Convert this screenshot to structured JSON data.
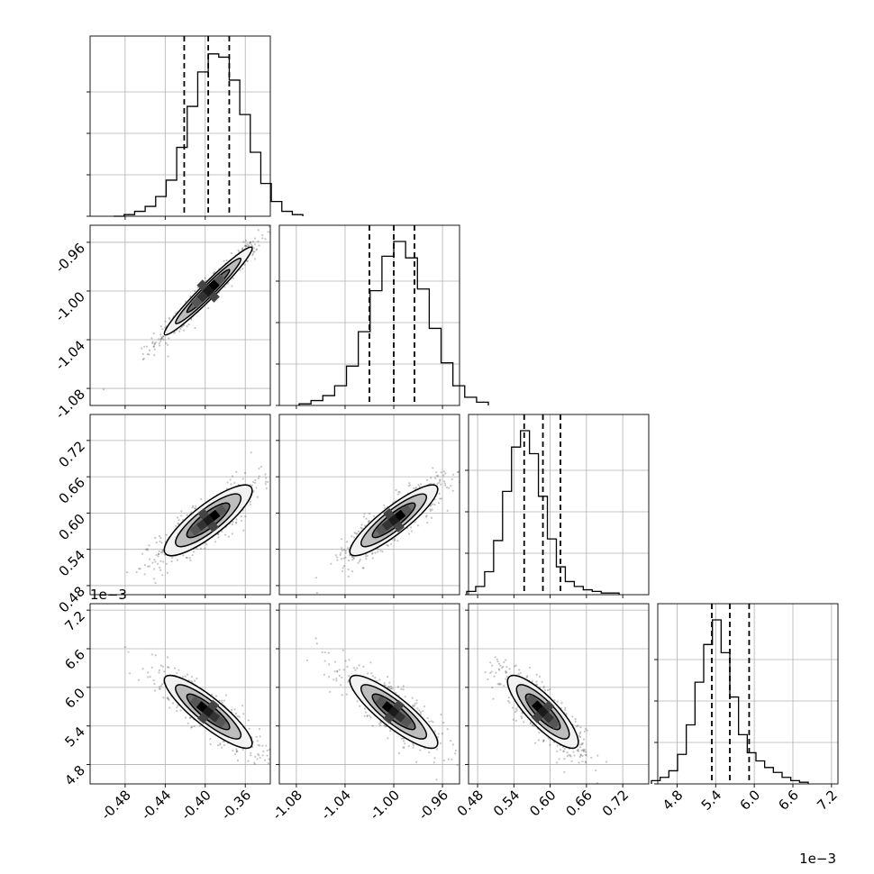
{
  "chart_data": {
    "type": "corner",
    "parameters": [
      {
        "name": "",
        "range": [
          -0.515,
          -0.335
        ],
        "median": -0.397,
        "q16": -0.421,
        "q84": -0.376,
        "ticks": [
          "-0.48",
          "-0.44",
          "-0.40",
          "-0.36"
        ],
        "tick_values": [
          -0.48,
          -0.44,
          -0.4,
          -0.36
        ]
      },
      {
        "name": "",
        "range": [
          -1.094,
          -0.946
        ],
        "median": -1.0,
        "q16": -1.02,
        "q84": -0.983,
        "ticks": [
          "-1.08",
          "-1.04",
          "-1.00",
          "-0.96"
        ],
        "tick_values": [
          -1.08,
          -1.04,
          -1.0,
          -0.96
        ]
      },
      {
        "name": "",
        "range": [
          0.465,
          0.763
        ],
        "median": 0.588,
        "q16": 0.557,
        "q84": 0.617,
        "ticks": [
          "0.48",
          "0.54",
          "0.60",
          "0.66",
          "0.72"
        ],
        "tick_values": [
          0.48,
          0.54,
          0.6,
          0.66,
          0.72
        ]
      },
      {
        "name": "",
        "range": [
          4.5,
          7.3
        ],
        "median": 5.62,
        "q16": 5.34,
        "q84": 5.92,
        "ticks": [
          "4.8",
          "5.4",
          "6.0",
          "6.6",
          "7.2"
        ],
        "tick_values": [
          4.8,
          5.4,
          6.0,
          6.6,
          7.2
        ],
        "offset_text": "1e−3"
      }
    ],
    "histograms": [
      {
        "param": 0,
        "counts": [
          0,
          0.01,
          0.03,
          0.06,
          0.12,
          0.22,
          0.42,
          0.67,
          0.88,
          0.99,
          0.97,
          0.83,
          0.62,
          0.39,
          0.2,
          0.09,
          0.03,
          0.01
        ]
      },
      {
        "param": 1,
        "counts": [
          0.01,
          0.03,
          0.06,
          0.12,
          0.24,
          0.45,
          0.7,
          0.91,
          1.0,
          0.9,
          0.71,
          0.47,
          0.26,
          0.12,
          0.05,
          0.02
        ]
      },
      {
        "param": 2,
        "counts": [
          0.02,
          0.05,
          0.14,
          0.33,
          0.63,
          0.9,
          1.0,
          0.86,
          0.6,
          0.34,
          0.17,
          0.08,
          0.05,
          0.03,
          0.02,
          0.01,
          0.01
        ]
      },
      {
        "param": 3,
        "counts": [
          0.02,
          0.04,
          0.08,
          0.18,
          0.36,
          0.62,
          0.85,
          1.0,
          0.8,
          0.53,
          0.3,
          0.19,
          0.14,
          0.1,
          0.07,
          0.04,
          0.02,
          0.01
        ]
      }
    ],
    "pairs": [
      {
        "x": 1,
        "y": 0,
        "correlation": 0.97
      },
      {
        "x": 2,
        "y": 0,
        "correlation": 0.84
      },
      {
        "x": 2,
        "y": 1,
        "correlation": 0.88
      },
      {
        "x": 3,
        "y": 0,
        "correlation": -0.87
      },
      {
        "x": 3,
        "y": 1,
        "correlation": -0.86
      },
      {
        "x": 3,
        "y": 2,
        "correlation": -0.83
      }
    ],
    "grid": true,
    "colors": {
      "density": "#000000",
      "grid": "#b0b0b0",
      "points": "#333333"
    }
  }
}
